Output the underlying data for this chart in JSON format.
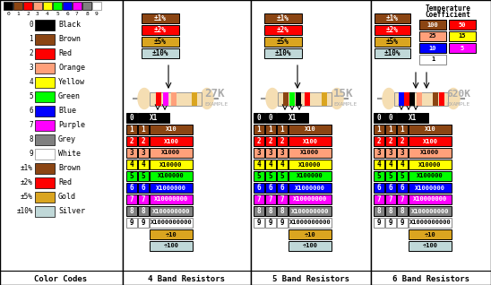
{
  "digit_colors": [
    "#000000",
    "#8B4513",
    "#FF0000",
    "#FFA07A",
    "#FFFF00",
    "#00FF00",
    "#0000FF",
    "#FF00FF",
    "#808080",
    "#FFFFFF"
  ],
  "multiplier_colors": [
    "#000000",
    "#8B4513",
    "#FF0000",
    "#FFA07A",
    "#FFFF00",
    "#00FF00",
    "#0000FF",
    "#FF00FF",
    "#808080",
    "#FFFFFF",
    "#DAA520",
    "#C0D8D8"
  ],
  "multiplier_labels": [
    "X1",
    "X10",
    "X100",
    "X1000",
    "X10000",
    "X100000",
    "X1000000",
    "X10000000",
    "X100000000",
    "X1000000000",
    "÷10",
    "÷100"
  ],
  "tolerance_labels": [
    "±1%",
    "±2%",
    "±5%",
    "±10%"
  ],
  "tolerance_colors": [
    "#8B4513",
    "#FF0000",
    "#DAA520",
    "#C0D8D8"
  ],
  "color_code_names": [
    "Black",
    "Brown",
    "Red",
    "Orange",
    "Yellow",
    "Green",
    "Blue",
    "Purple",
    "Grey",
    "White",
    "Brown",
    "Red",
    "Gold",
    "Silver"
  ],
  "color_code_labels": [
    "0",
    "1",
    "2",
    "3",
    "4",
    "5",
    "6",
    "7",
    "8",
    "9",
    "±1%",
    "±2%",
    "±5%",
    "±10%"
  ],
  "color_code_colors": [
    "#000000",
    "#8B4513",
    "#FF0000",
    "#FFA07A",
    "#FFFF00",
    "#00FF00",
    "#0000FF",
    "#FF00FF",
    "#808080",
    "#FFFFFF",
    "#8B4513",
    "#FF0000",
    "#DAA520",
    "#C0D8D8"
  ],
  "temp_coeff_values": [
    "100",
    "50",
    "25",
    "15",
    "10",
    "5",
    "1"
  ],
  "temp_coeff_colors": [
    "#8B4513",
    "#FF0000",
    "#FFA07A",
    "#FFFF00",
    "#0000FF",
    "#FF00FF",
    "#FFFFFF"
  ],
  "sections": [
    "Color Codes",
    "4 Band Resistors",
    "5 Band Resistors",
    "6 Band Resistors"
  ],
  "section_x": [
    0,
    137,
    280,
    414,
    548
  ]
}
